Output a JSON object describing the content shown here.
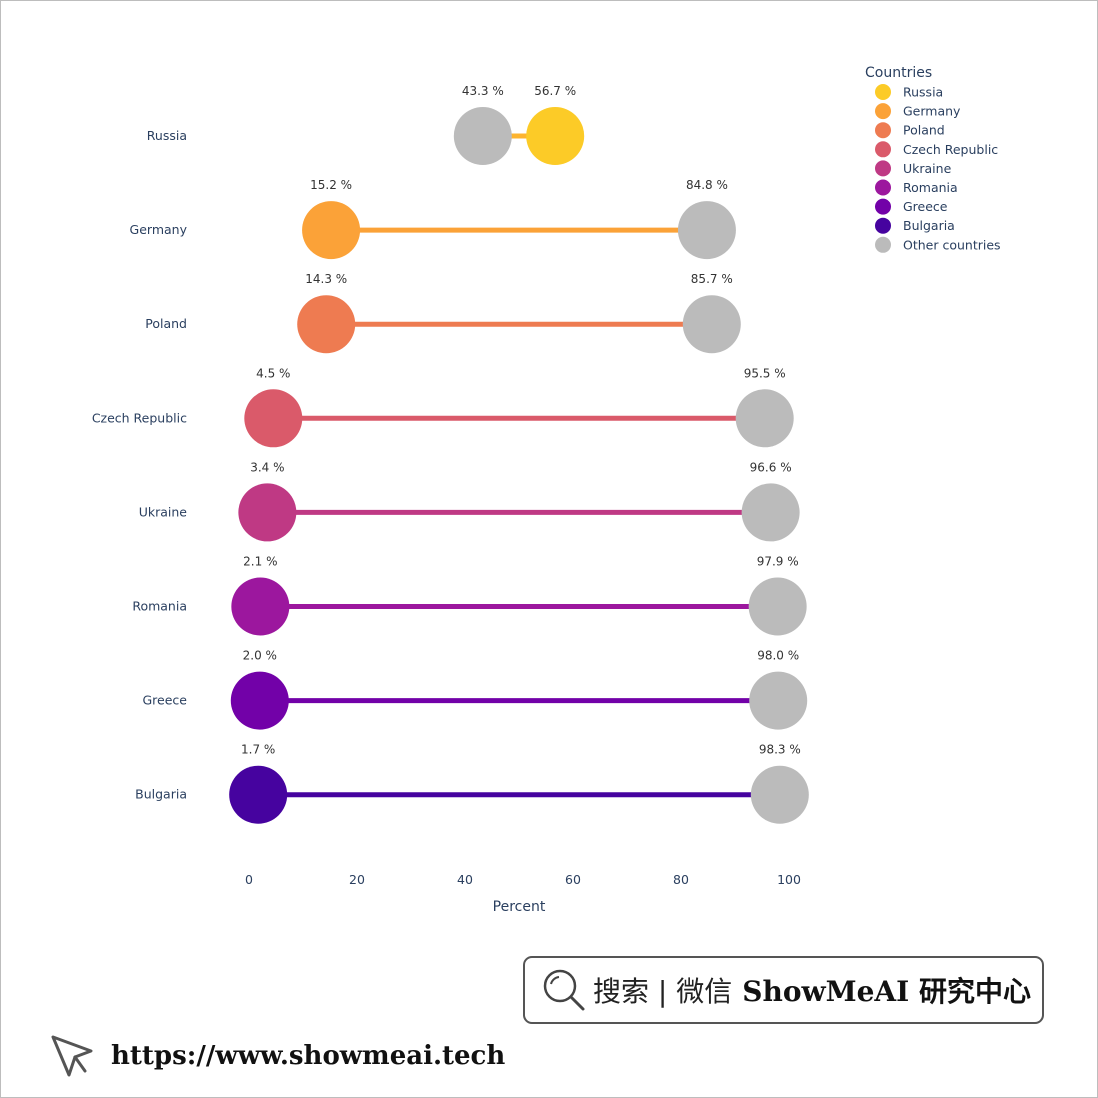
{
  "chart_data": {
    "type": "dumbbell",
    "xlabel": "Percent",
    "xlim": [
      0,
      100
    ],
    "xticks": [
      0,
      20,
      40,
      60,
      80,
      100
    ],
    "value_suffix": " %",
    "legend": {
      "title": "Countries",
      "placement": "top-right"
    },
    "other_label": "Other countries",
    "other_color": "#bbbbbb",
    "categories": [
      "Russia",
      "Germany",
      "Poland",
      "Czech Republic",
      "Ukraine",
      "Romania",
      "Greece",
      "Bulgaria"
    ],
    "series": [
      {
        "name": "Russia",
        "color": "#fccb27",
        "line_color": "#fdb42f",
        "value": 56.7,
        "other": 43.3
      },
      {
        "name": "Germany",
        "color": "#fba238",
        "line_color": "#fba238",
        "value": 15.2,
        "other": 84.8
      },
      {
        "name": "Poland",
        "color": "#ee7b51",
        "line_color": "#ee7b51",
        "value": 14.3,
        "other": 85.7
      },
      {
        "name": "Czech Republic",
        "color": "#da5a6a",
        "line_color": "#da5a6a",
        "value": 4.5,
        "other": 95.5
      },
      {
        "name": "Ukraine",
        "color": "#bf3984",
        "line_color": "#bf3984",
        "value": 3.4,
        "other": 96.6
      },
      {
        "name": "Romania",
        "color": "#9c179e",
        "line_color": "#9c179e",
        "value": 2.1,
        "other": 97.9
      },
      {
        "name": "Greece",
        "color": "#7201a8",
        "line_color": "#7201a8",
        "value": 2.0,
        "other": 98.0
      },
      {
        "name": "Bulgaria",
        "color": "#46039f",
        "line_color": "#46039f",
        "value": 1.7,
        "other": 98.3
      }
    ]
  },
  "watermark": {
    "search_text": "搜索 | 微信",
    "brand_text": "ShowMeAI 研究中心",
    "url": "https://www.showmeai.tech"
  }
}
